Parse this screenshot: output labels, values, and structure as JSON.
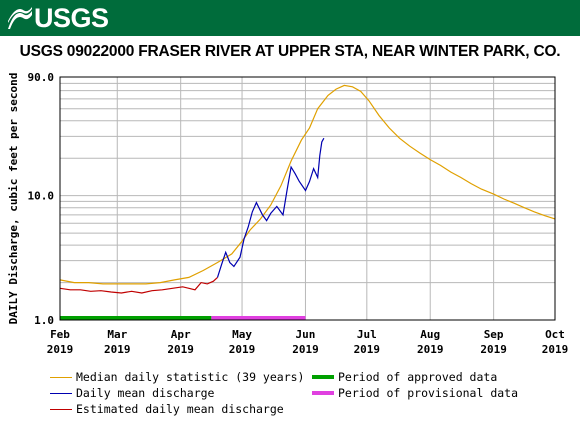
{
  "header": {
    "agency": "USGS",
    "title": "USGS 09022000 FRASER RIVER AT UPPER STA, NEAR WINTER PARK, CO."
  },
  "colors": {
    "banner": "#006c3b",
    "median": "#e0a000",
    "daily_mean": "#0000b0",
    "estimated": "#c00000",
    "approved": "#00a000",
    "provisional": "#e040e0",
    "grid": "#b8b8b8"
  },
  "chart_data": {
    "type": "line",
    "title": "USGS 09022000 FRASER RIVER AT UPPER STA, NEAR WINTER PARK, CO.",
    "ylabel": "DAILY Discharge, cubic feet per second",
    "xlabel": "",
    "y_scale": "log",
    "ylim": [
      1.0,
      90.0
    ],
    "y_tick_labels": [
      "1.0",
      "10.0",
      "90.0"
    ],
    "x_range": [
      "2019-02-01",
      "2019-10-01"
    ],
    "x_ticks": [
      {
        "date": "2019-02-01",
        "line1": "Feb",
        "line2": "2019"
      },
      {
        "date": "2019-03-01",
        "line1": "Mar",
        "line2": "2019"
      },
      {
        "date": "2019-04-01",
        "line1": "Apr",
        "line2": "2019"
      },
      {
        "date": "2019-05-01",
        "line1": "May",
        "line2": "2019"
      },
      {
        "date": "2019-06-01",
        "line1": "Jun",
        "line2": "2019"
      },
      {
        "date": "2019-07-01",
        "line1": "Jul",
        "line2": "2019"
      },
      {
        "date": "2019-08-01",
        "line1": "Aug",
        "line2": "2019"
      },
      {
        "date": "2019-09-01",
        "line1": "Sep",
        "line2": "2019"
      },
      {
        "date": "2019-10-01",
        "line1": "Oct",
        "line2": "2019"
      }
    ],
    "grid": true,
    "legend_position": "bottom",
    "series": [
      {
        "name": "Median daily statistic (39 years)",
        "color": "#e0a000",
        "points": [
          [
            "2019-02-01",
            2.1
          ],
          [
            "2019-02-08",
            2.0
          ],
          [
            "2019-02-15",
            2.0
          ],
          [
            "2019-02-22",
            1.95
          ],
          [
            "2019-03-01",
            1.95
          ],
          [
            "2019-03-08",
            1.95
          ],
          [
            "2019-03-15",
            1.95
          ],
          [
            "2019-03-22",
            2.0
          ],
          [
            "2019-03-29",
            2.1
          ],
          [
            "2019-04-05",
            2.2
          ],
          [
            "2019-04-12",
            2.5
          ],
          [
            "2019-04-19",
            2.9
          ],
          [
            "2019-04-26",
            3.4
          ],
          [
            "2019-05-01",
            4.3
          ],
          [
            "2019-05-05",
            5.3
          ],
          [
            "2019-05-10",
            6.5
          ],
          [
            "2019-05-15",
            8.4
          ],
          [
            "2019-05-20",
            12.0
          ],
          [
            "2019-05-25",
            19.0
          ],
          [
            "2019-05-30",
            28.0
          ],
          [
            "2019-06-03",
            35.0
          ],
          [
            "2019-06-07",
            50.0
          ],
          [
            "2019-06-12",
            64.0
          ],
          [
            "2019-06-16",
            72.0
          ],
          [
            "2019-06-20",
            77.0
          ],
          [
            "2019-06-24",
            75.0
          ],
          [
            "2019-06-28",
            69.0
          ],
          [
            "2019-07-02",
            58.0
          ],
          [
            "2019-07-07",
            44.0
          ],
          [
            "2019-07-12",
            35.0
          ],
          [
            "2019-07-17",
            29.0
          ],
          [
            "2019-07-22",
            25.0
          ],
          [
            "2019-07-27",
            22.0
          ],
          [
            "2019-08-01",
            19.5
          ],
          [
            "2019-08-06",
            17.5
          ],
          [
            "2019-08-11",
            15.5
          ],
          [
            "2019-08-16",
            14.0
          ],
          [
            "2019-08-21",
            12.5
          ],
          [
            "2019-08-26",
            11.3
          ],
          [
            "2019-09-01",
            10.3
          ],
          [
            "2019-09-06",
            9.4
          ],
          [
            "2019-09-11",
            8.7
          ],
          [
            "2019-09-16",
            8.0
          ],
          [
            "2019-09-21",
            7.4
          ],
          [
            "2019-09-26",
            6.9
          ],
          [
            "2019-10-01",
            6.5
          ]
        ]
      },
      {
        "name": "Daily mean discharge",
        "color": "#0000b0",
        "points": [
          [
            "2019-04-19",
            2.2
          ],
          [
            "2019-04-21",
            2.8
          ],
          [
            "2019-04-23",
            3.5
          ],
          [
            "2019-04-25",
            2.9
          ],
          [
            "2019-04-27",
            2.7
          ],
          [
            "2019-04-30",
            3.2
          ],
          [
            "2019-05-02",
            4.5
          ],
          [
            "2019-05-04",
            5.6
          ],
          [
            "2019-05-06",
            7.4
          ],
          [
            "2019-05-08",
            8.8
          ],
          [
            "2019-05-11",
            7.0
          ],
          [
            "2019-05-13",
            6.3
          ],
          [
            "2019-05-15",
            7.2
          ],
          [
            "2019-05-18",
            8.2
          ],
          [
            "2019-05-21",
            7.0
          ],
          [
            "2019-05-23",
            11.0
          ],
          [
            "2019-05-25",
            17.0
          ],
          [
            "2019-05-27",
            15.0
          ],
          [
            "2019-05-29",
            13.0
          ],
          [
            "2019-06-01",
            11.0
          ],
          [
            "2019-06-03",
            13.0
          ],
          [
            "2019-06-05",
            16.5
          ],
          [
            "2019-06-07",
            14.0
          ],
          [
            "2019-06-08",
            21.0
          ],
          [
            "2019-06-09",
            27.0
          ],
          [
            "2019-06-10",
            29.0
          ]
        ]
      },
      {
        "name": "Estimated daily mean discharge",
        "color": "#c00000",
        "points": [
          [
            "2019-02-01",
            1.8
          ],
          [
            "2019-02-06",
            1.75
          ],
          [
            "2019-02-11",
            1.75
          ],
          [
            "2019-02-16",
            1.7
          ],
          [
            "2019-02-21",
            1.72
          ],
          [
            "2019-02-26",
            1.68
          ],
          [
            "2019-03-03",
            1.65
          ],
          [
            "2019-03-08",
            1.7
          ],
          [
            "2019-03-13",
            1.65
          ],
          [
            "2019-03-18",
            1.72
          ],
          [
            "2019-03-23",
            1.75
          ],
          [
            "2019-03-28",
            1.8
          ],
          [
            "2019-04-02",
            1.85
          ],
          [
            "2019-04-05",
            1.8
          ],
          [
            "2019-04-08",
            1.75
          ],
          [
            "2019-04-11",
            2.0
          ],
          [
            "2019-04-14",
            1.95
          ],
          [
            "2019-04-17",
            2.05
          ],
          [
            "2019-04-19",
            2.2
          ]
        ]
      }
    ],
    "status_bars": [
      {
        "name": "Period of approved data",
        "color": "#00a000",
        "start": "2019-02-01",
        "end": "2019-04-16"
      },
      {
        "name": "Period of provisional data",
        "color": "#e040e0",
        "start": "2019-04-16",
        "end": "2019-06-01"
      }
    ]
  },
  "legend": {
    "median": "Median daily statistic (39 years)",
    "daily_mean": "Daily mean discharge",
    "estimated": "Estimated daily mean discharge",
    "approved": "Period of approved data",
    "provisional": "Period of provisional data"
  }
}
